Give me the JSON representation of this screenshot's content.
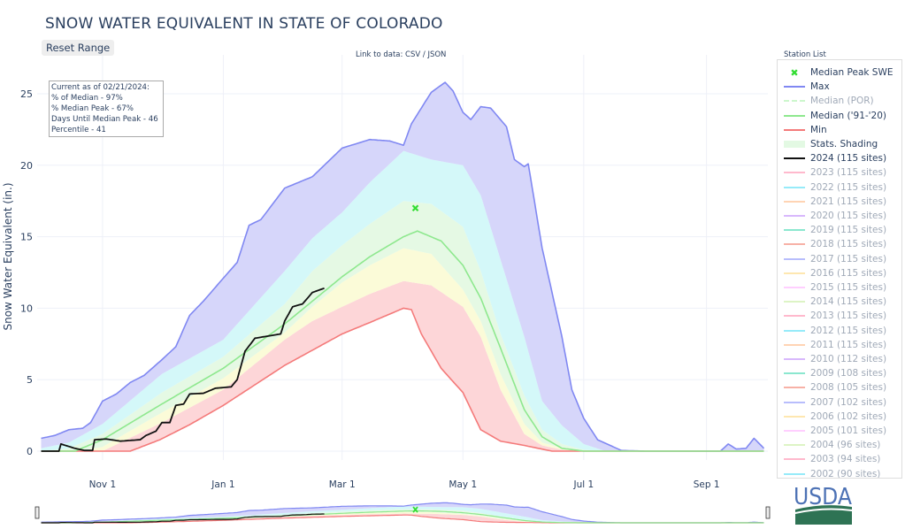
{
  "header": {
    "title": "SNOW WATER EQUIVALENT IN STATE OF COLORADO",
    "reset_label": "Reset Range",
    "data_link": "Link to data: CSV / JSON"
  },
  "annotation": {
    "lines": [
      "Current as of 02/21/2024:",
      "% of Median - 97%",
      "% Median Peak - 67%",
      "Days Until Median Peak - 46",
      "Percentile - 41"
    ]
  },
  "legend": {
    "title": "Station List",
    "items": [
      {
        "label": "Median Peak SWE",
        "color": "#33dd33",
        "style": "marker",
        "visible": true
      },
      {
        "label": "Max",
        "color": "#8088f2",
        "style": "line",
        "visible": true
      },
      {
        "label": "Median (POR)",
        "color": "#90ee90",
        "style": "dash",
        "visible": false
      },
      {
        "label": "Median ('91-'20)",
        "color": "#8ee88e",
        "style": "line",
        "visible": true
      },
      {
        "label": "Min",
        "color": "#f47a7a",
        "style": "line",
        "visible": true
      },
      {
        "label": "Stats. Shading",
        "color": "#e3f9e3",
        "style": "band",
        "visible": true
      },
      {
        "label": "2024 (115 sites)",
        "color": "#111111",
        "style": "line",
        "visible": true
      },
      {
        "label": "2023 (115 sites)",
        "color": "#FF6692",
        "style": "line",
        "visible": false
      },
      {
        "label": "2022 (115 sites)",
        "color": "#19d3f3",
        "style": "line",
        "visible": false
      },
      {
        "label": "2021 (115 sites)",
        "color": "#FFA15A",
        "style": "line",
        "visible": false
      },
      {
        "label": "2020 (115 sites)",
        "color": "#ab63fa",
        "style": "line",
        "visible": false
      },
      {
        "label": "2019 (115 sites)",
        "color": "#00cc96",
        "style": "line",
        "visible": false
      },
      {
        "label": "2018 (115 sites)",
        "color": "#EF553B",
        "style": "line",
        "visible": false
      },
      {
        "label": "2017 (115 sites)",
        "color": "#636efa",
        "style": "line",
        "visible": false
      },
      {
        "label": "2016 (115 sites)",
        "color": "#FECB52",
        "style": "line",
        "visible": false
      },
      {
        "label": "2015 (115 sites)",
        "color": "#FF97FF",
        "style": "line",
        "visible": false
      },
      {
        "label": "2014 (115 sites)",
        "color": "#B6E880",
        "style": "line",
        "visible": false
      },
      {
        "label": "2013 (115 sites)",
        "color": "#FF6692",
        "style": "line",
        "visible": false
      },
      {
        "label": "2012 (115 sites)",
        "color": "#19d3f3",
        "style": "line",
        "visible": false
      },
      {
        "label": "2011 (115 sites)",
        "color": "#FFA15A",
        "style": "line",
        "visible": false
      },
      {
        "label": "2010 (112 sites)",
        "color": "#ab63fa",
        "style": "line",
        "visible": false
      },
      {
        "label": "2009 (108 sites)",
        "color": "#00cc96",
        "style": "line",
        "visible": false
      },
      {
        "label": "2008 (105 sites)",
        "color": "#EF553B",
        "style": "line",
        "visible": false
      },
      {
        "label": "2007 (102 sites)",
        "color": "#636efa",
        "style": "line",
        "visible": false
      },
      {
        "label": "2006 (102 sites)",
        "color": "#FECB52",
        "style": "line",
        "visible": false
      },
      {
        "label": "2005 (101 sites)",
        "color": "#FF97FF",
        "style": "line",
        "visible": false
      },
      {
        "label": "2004 (96 sites)",
        "color": "#B6E880",
        "style": "line",
        "visible": false
      },
      {
        "label": "2003 (94 sites)",
        "color": "#FF6692",
        "style": "line",
        "visible": false
      },
      {
        "label": "2002 (90 sites)",
        "color": "#19d3f3",
        "style": "line",
        "visible": false
      }
    ]
  },
  "logo": {
    "text": "USDA"
  },
  "chart_data": {
    "type": "area",
    "ylabel": "Snow Water Equivalent (in.)",
    "xlim": [
      "2023-09-29",
      "2024-10-02"
    ],
    "ylim": [
      0,
      27
    ],
    "grid": true,
    "legend_position": "right",
    "x_ticks": [
      {
        "date": "2023-11-01",
        "label": "Nov 1"
      },
      {
        "date": "2024-01-01",
        "label": "Jan 1"
      },
      {
        "date": "2024-03-01",
        "label": "Mar 1"
      },
      {
        "date": "2024-05-01",
        "label": "May 1"
      },
      {
        "date": "2024-07-01",
        "label": "Jul 1"
      },
      {
        "date": "2024-09-01",
        "label": "Sep 1"
      }
    ],
    "y_ticks": [
      "0",
      "5",
      "10",
      "15",
      "20",
      "25"
    ],
    "series": [
      {
        "name": "Max",
        "color": "#8088f2",
        "points": [
          [
            "2023-10-01",
            0.9
          ],
          [
            "2023-10-08",
            1.1
          ],
          [
            "2023-10-15",
            1.5
          ],
          [
            "2023-10-22",
            1.6
          ],
          [
            "2023-10-26",
            2.0
          ],
          [
            "2023-11-01",
            3.5
          ],
          [
            "2023-11-08",
            4.0
          ],
          [
            "2023-11-15",
            4.8
          ],
          [
            "2023-11-22",
            5.3
          ],
          [
            "2023-12-01",
            6.4
          ],
          [
            "2023-12-08",
            7.3
          ],
          [
            "2023-12-15",
            9.5
          ],
          [
            "2023-12-22",
            10.5
          ],
          [
            "2024-01-01",
            12.1
          ],
          [
            "2024-01-08",
            13.2
          ],
          [
            "2024-01-14",
            15.8
          ],
          [
            "2024-01-20",
            16.2
          ],
          [
            "2024-02-01",
            18.4
          ],
          [
            "2024-02-15",
            19.2
          ],
          [
            "2024-03-01",
            21.2
          ],
          [
            "2024-03-15",
            21.8
          ],
          [
            "2024-03-25",
            21.7
          ],
          [
            "2024-04-01",
            21.4
          ],
          [
            "2024-04-05",
            22.9
          ],
          [
            "2024-04-15",
            25.1
          ],
          [
            "2024-04-22",
            25.8
          ],
          [
            "2024-04-26",
            25.2
          ],
          [
            "2024-05-01",
            23.7
          ],
          [
            "2024-05-05",
            23.2
          ],
          [
            "2024-05-10",
            24.1
          ],
          [
            "2024-05-15",
            24.0
          ],
          [
            "2024-05-23",
            22.7
          ],
          [
            "2024-05-27",
            20.4
          ],
          [
            "2024-06-01",
            19.9
          ],
          [
            "2024-06-03",
            20.1
          ],
          [
            "2024-06-10",
            14.2
          ],
          [
            "2024-06-20",
            8.0
          ],
          [
            "2024-06-25",
            4.3
          ],
          [
            "2024-07-01",
            2.3
          ],
          [
            "2024-07-08",
            0.8
          ],
          [
            "2024-07-20",
            0.05
          ],
          [
            "2024-08-01",
            0
          ],
          [
            "2024-09-08",
            0
          ],
          [
            "2024-09-12",
            0.5
          ],
          [
            "2024-09-16",
            0.15
          ],
          [
            "2024-09-21",
            0.2
          ],
          [
            "2024-09-25",
            0.9
          ],
          [
            "2024-09-30",
            0.2
          ]
        ]
      },
      {
        "name": "Median ('91-'20)",
        "color": "#8ee88e",
        "points": [
          [
            "2023-10-01",
            0
          ],
          [
            "2023-10-18",
            0
          ],
          [
            "2023-11-01",
            0.8
          ],
          [
            "2023-12-01",
            3.3
          ],
          [
            "2024-01-01",
            5.8
          ],
          [
            "2024-02-01",
            8.9
          ],
          [
            "2024-03-01",
            12.2
          ],
          [
            "2024-03-15",
            13.6
          ],
          [
            "2024-04-01",
            15.0
          ],
          [
            "2024-04-08",
            15.4
          ],
          [
            "2024-04-20",
            14.7
          ],
          [
            "2024-05-01",
            13.0
          ],
          [
            "2024-05-10",
            10.7
          ],
          [
            "2024-05-20",
            7.2
          ],
          [
            "2024-06-01",
            2.9
          ],
          [
            "2024-06-10",
            1.0
          ],
          [
            "2024-06-20",
            0.2
          ],
          [
            "2024-07-01",
            0
          ],
          [
            "2024-09-30",
            0
          ]
        ]
      },
      {
        "name": "Min",
        "color": "#f47a7a",
        "points": [
          [
            "2023-10-01",
            0
          ],
          [
            "2023-11-15",
            0
          ],
          [
            "2023-11-30",
            0.8
          ],
          [
            "2023-12-15",
            1.85
          ],
          [
            "2024-01-01",
            3.2
          ],
          [
            "2024-02-01",
            6.0
          ],
          [
            "2024-03-01",
            8.2
          ],
          [
            "2024-03-15",
            9.0
          ],
          [
            "2024-04-01",
            10.0
          ],
          [
            "2024-04-05",
            9.9
          ],
          [
            "2024-04-10",
            8.2
          ],
          [
            "2024-04-20",
            5.8
          ],
          [
            "2024-05-01",
            4.1
          ],
          [
            "2024-05-10",
            1.5
          ],
          [
            "2024-05-20",
            0.7
          ],
          [
            "2024-06-01",
            0.4
          ],
          [
            "2024-06-15",
            0
          ],
          [
            "2024-09-30",
            0
          ]
        ]
      },
      {
        "name": "2024 (115 sites)",
        "color": "#111111",
        "points": [
          [
            "2023-10-01",
            0
          ],
          [
            "2023-10-10",
            0
          ],
          [
            "2023-10-11",
            0.5
          ],
          [
            "2023-10-18",
            0.2
          ],
          [
            "2023-10-23",
            0.05
          ],
          [
            "2023-10-27",
            0.05
          ],
          [
            "2023-10-28",
            0.8
          ],
          [
            "2023-11-03",
            0.85
          ],
          [
            "2023-11-10",
            0.7
          ],
          [
            "2023-11-20",
            0.8
          ],
          [
            "2023-11-23",
            1.1
          ],
          [
            "2023-11-28",
            1.4
          ],
          [
            "2023-12-01",
            2.0
          ],
          [
            "2023-12-05",
            2.0
          ],
          [
            "2023-12-08",
            3.2
          ],
          [
            "2023-12-12",
            3.3
          ],
          [
            "2023-12-15",
            4.0
          ],
          [
            "2023-12-22",
            4.05
          ],
          [
            "2023-12-28",
            4.4
          ],
          [
            "2024-01-05",
            4.5
          ],
          [
            "2024-01-08",
            5.0
          ],
          [
            "2024-01-12",
            7.0
          ],
          [
            "2024-01-17",
            7.9
          ],
          [
            "2024-01-30",
            8.2
          ],
          [
            "2024-02-01",
            9.1
          ],
          [
            "2024-02-05",
            10.1
          ],
          [
            "2024-02-10",
            10.3
          ],
          [
            "2024-02-15",
            11.1
          ],
          [
            "2024-02-21",
            11.4
          ]
        ]
      }
    ],
    "median_peak": {
      "name": "Median Peak SWE",
      "date": "2024-04-07",
      "value": 17.0,
      "color": "#33dd33"
    },
    "shading_bands": {
      "colors": [
        "#fdd6d8",
        "#fbfbd8",
        "#e5f9e4",
        "#d4f8f9",
        "#d6d6fa"
      ],
      "bounds": [
        [
          [
            "2023-10-01",
            0
          ],
          [
            "2023-11-01",
            0
          ],
          [
            "2023-12-01",
            2.0
          ],
          [
            "2024-01-01",
            4.3
          ],
          [
            "2024-02-01",
            7.8
          ],
          [
            "2024-02-15",
            9.1
          ],
          [
            "2024-03-01",
            10.1
          ],
          [
            "2024-03-15",
            11.0
          ],
          [
            "2024-04-01",
            11.9
          ],
          [
            "2024-04-15",
            11.6
          ],
          [
            "2024-05-01",
            10.1
          ],
          [
            "2024-05-10",
            8.0
          ],
          [
            "2024-05-20",
            4.3
          ],
          [
            "2024-06-01",
            1.2
          ],
          [
            "2024-06-10",
            0.4
          ],
          [
            "2024-06-20",
            0.1
          ],
          [
            "2024-07-01",
            0
          ],
          [
            "2024-09-30",
            0
          ]
        ],
        [
          [
            "2023-10-01",
            0
          ],
          [
            "2023-10-20",
            0
          ],
          [
            "2023-11-01",
            0.3
          ],
          [
            "2023-12-01",
            2.7
          ],
          [
            "2024-01-01",
            5.1
          ],
          [
            "2024-02-01",
            8.3
          ],
          [
            "2024-02-15",
            10.1
          ],
          [
            "2024-03-01",
            11.8
          ],
          [
            "2024-03-15",
            13.0
          ],
          [
            "2024-04-01",
            14.2
          ],
          [
            "2024-04-15",
            13.8
          ],
          [
            "2024-05-01",
            11.3
          ],
          [
            "2024-05-10",
            9.1
          ],
          [
            "2024-05-20",
            5.4
          ],
          [
            "2024-06-01",
            1.9
          ],
          [
            "2024-06-10",
            0.6
          ],
          [
            "2024-06-20",
            0.2
          ],
          [
            "2024-07-01",
            0
          ],
          [
            "2024-09-30",
            0
          ]
        ],
        [
          [
            "2023-10-01",
            0
          ],
          [
            "2023-10-15",
            0.2
          ],
          [
            "2023-11-01",
            1.2
          ],
          [
            "2023-12-01",
            4.1
          ],
          [
            "2024-01-01",
            6.6
          ],
          [
            "2024-02-01",
            10.3
          ],
          [
            "2024-02-15",
            12.6
          ],
          [
            "2024-03-01",
            14.4
          ],
          [
            "2024-03-15",
            15.9
          ],
          [
            "2024-04-01",
            17.5
          ],
          [
            "2024-04-15",
            17.3
          ],
          [
            "2024-05-01",
            15.7
          ],
          [
            "2024-05-10",
            12.6
          ],
          [
            "2024-05-20",
            8.2
          ],
          [
            "2024-06-01",
            3.9
          ],
          [
            "2024-06-10",
            1.5
          ],
          [
            "2024-06-20",
            0.5
          ],
          [
            "2024-07-01",
            0.1
          ],
          [
            "2024-07-10",
            0
          ],
          [
            "2024-09-30",
            0
          ]
        ],
        [
          [
            "2023-10-01",
            0.2
          ],
          [
            "2023-10-15",
            0.6
          ],
          [
            "2023-11-01",
            1.9
          ],
          [
            "2023-12-01",
            5.4
          ],
          [
            "2024-01-01",
            7.8
          ],
          [
            "2024-02-01",
            12.6
          ],
          [
            "2024-02-15",
            14.9
          ],
          [
            "2024-03-01",
            16.7
          ],
          [
            "2024-03-15",
            18.8
          ],
          [
            "2024-04-01",
            21.0
          ],
          [
            "2024-04-15",
            20.4
          ],
          [
            "2024-05-01",
            20.0
          ],
          [
            "2024-05-10",
            17.9
          ],
          [
            "2024-05-20",
            13.4
          ],
          [
            "2024-06-01",
            8.0
          ],
          [
            "2024-06-10",
            3.5
          ],
          [
            "2024-06-20",
            1.8
          ],
          [
            "2024-07-01",
            0.5
          ],
          [
            "2024-07-12",
            0
          ],
          [
            "2024-09-30",
            0
          ]
        ]
      ]
    }
  }
}
